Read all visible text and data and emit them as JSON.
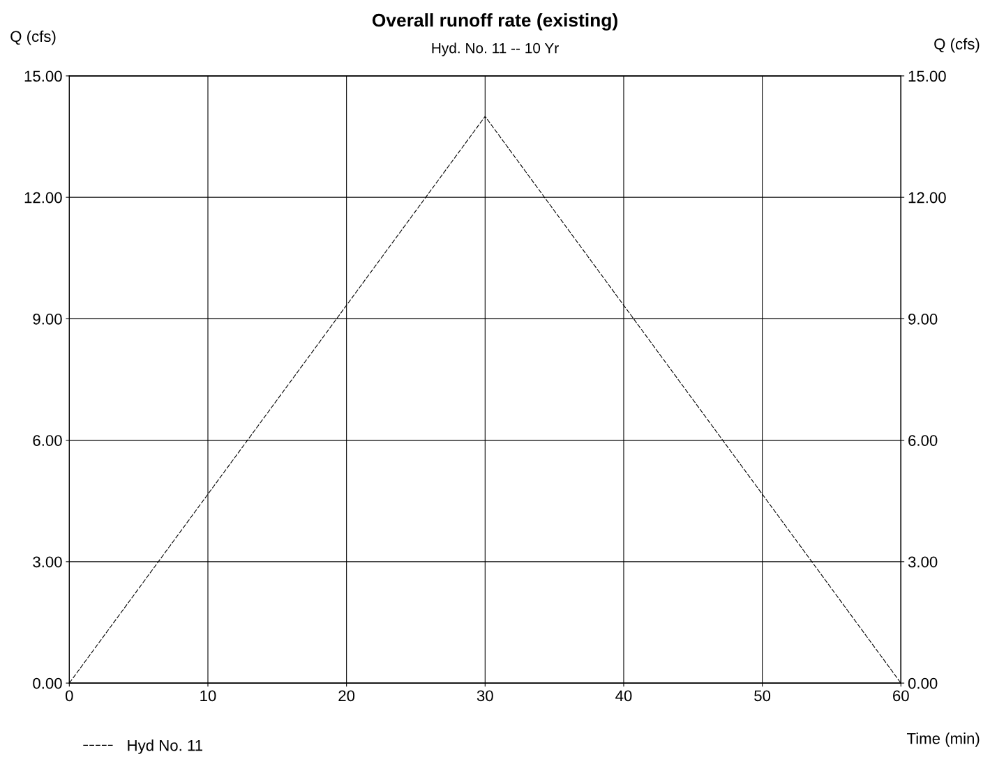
{
  "chart_data": {
    "type": "line",
    "title": "Overall runoff rate (existing)",
    "subtitle": "Hyd. No. 11 -- 10 Yr",
    "xlabel": "Time (min)",
    "ylabel": "Q (cfs)",
    "y2label": "Q (cfs)",
    "x": [
      0,
      30,
      60
    ],
    "series": [
      {
        "name": "Hyd No. 11",
        "color": "#000000",
        "values": [
          0,
          14.0,
          0
        ]
      }
    ],
    "xlim": [
      0,
      60
    ],
    "xticks": [
      0,
      10,
      20,
      30,
      40,
      50,
      60
    ],
    "ylim": [
      0,
      15
    ],
    "yticks": [
      {
        "value": 0,
        "label": "0.00"
      },
      {
        "value": 3,
        "label": "3.00"
      },
      {
        "value": 6,
        "label": "6.00"
      },
      {
        "value": 9,
        "label": "9.00"
      },
      {
        "value": 12,
        "label": "12.00"
      },
      {
        "value": 15,
        "label": "15.00"
      }
    ],
    "y2lim": [
      0,
      15
    ],
    "y2ticks": [
      {
        "value": 0,
        "label": "0.00"
      },
      {
        "value": 3,
        "label": "3.00"
      },
      {
        "value": 6,
        "label": "6.00"
      },
      {
        "value": 9,
        "label": "9.00"
      },
      {
        "value": 12,
        "label": "12.00"
      },
      {
        "value": 15,
        "label": "15.00"
      }
    ],
    "grid": true,
    "legend": "bottom left",
    "line_style": "dashed",
    "marker": "none"
  }
}
